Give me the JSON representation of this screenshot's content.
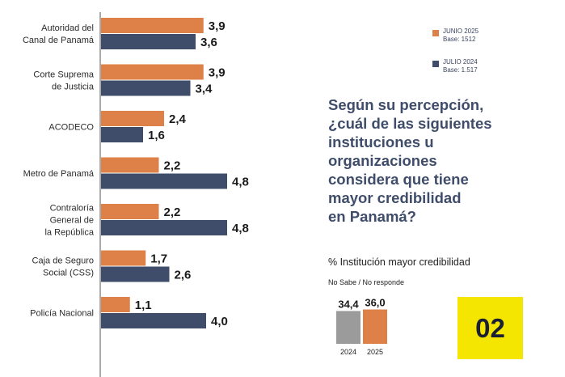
{
  "chart_data": {
    "type": "bar",
    "orientation": "horizontal",
    "categories": [
      [
        "Autoridad del",
        "Canal de Panamá"
      ],
      [
        "Corte Suprema",
        "de Justicia"
      ],
      [
        "ACODECO"
      ],
      [
        "Metro de Panamá"
      ],
      [
        "Contraloría",
        "General de",
        "la República"
      ],
      [
        "Caja de Seguro",
        "Social (CSS)"
      ],
      [
        "Policía Nacional"
      ]
    ],
    "series": [
      {
        "name": "JUNIO 2025",
        "base": "Base: 1512",
        "color": "#dd8149",
        "values": [
          3.9,
          3.9,
          2.4,
          2.2,
          2.2,
          1.7,
          1.1
        ],
        "labels": [
          "3,9",
          "3,9",
          "2,4",
          "2,2",
          "2,2",
          "1,7",
          "1,1"
        ]
      },
      {
        "name": "JULIO 2024",
        "base": "Base: 1.517",
        "color": "#3f4d6b",
        "values": [
          3.6,
          3.4,
          1.6,
          4.8,
          4.8,
          2.6,
          4.0
        ],
        "labels": [
          "3,6",
          "3,4",
          "1,6",
          "4,8",
          "4,8",
          "2,6",
          "4,0"
        ]
      }
    ],
    "xlim": [
      0,
      6.5
    ],
    "title": "",
    "xlabel": "",
    "ylabel": ""
  },
  "question": [
    "Según su percepción,",
    "¿cuál de las siguientes",
    "instituciones u",
    "organizaciones",
    "considera que tiene",
    "mayor credibilidad",
    "en Panamá?"
  ],
  "subtitle": "% Institución mayor credibilidad",
  "no_sabe": {
    "title": "No Sabe / No responde",
    "years": [
      "2024",
      "2025"
    ],
    "values": [
      34.4,
      36.0
    ],
    "labels": [
      "34,4",
      "36,0"
    ],
    "colors": [
      "#9b9b9b",
      "#dd8149"
    ]
  },
  "badge": "02"
}
